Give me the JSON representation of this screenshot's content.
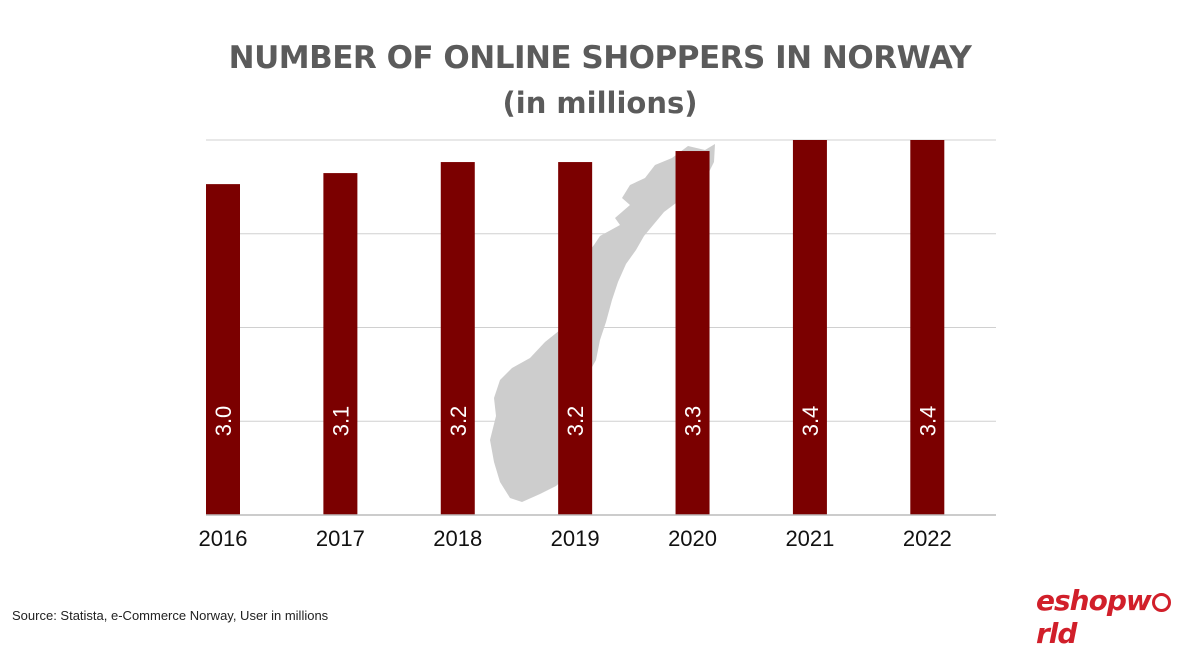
{
  "chart_data": {
    "type": "bar",
    "title": "NUMBER OF ONLINE SHOPPERS IN NORWAY",
    "subtitle": "(in millions)",
    "categories": [
      "2016",
      "2017",
      "2018",
      "2019",
      "2020",
      "2021",
      "2022"
    ],
    "values": [
      3.0,
      3.1,
      3.2,
      3.2,
      3.3,
      3.4,
      3.4
    ],
    "value_labels": [
      "3.0",
      "3.1",
      "3.2",
      "3.2",
      "3.3",
      "3.4",
      "3.4"
    ],
    "ylim": [
      0,
      3.4
    ],
    "grid": true,
    "bar_color": "#7b0000",
    "background_image": "norway-map"
  },
  "footer": {
    "source": "Source: Statista, e-Commerce Norway, User in millions",
    "logo_left": "eshopw",
    "logo_right": "rld"
  }
}
